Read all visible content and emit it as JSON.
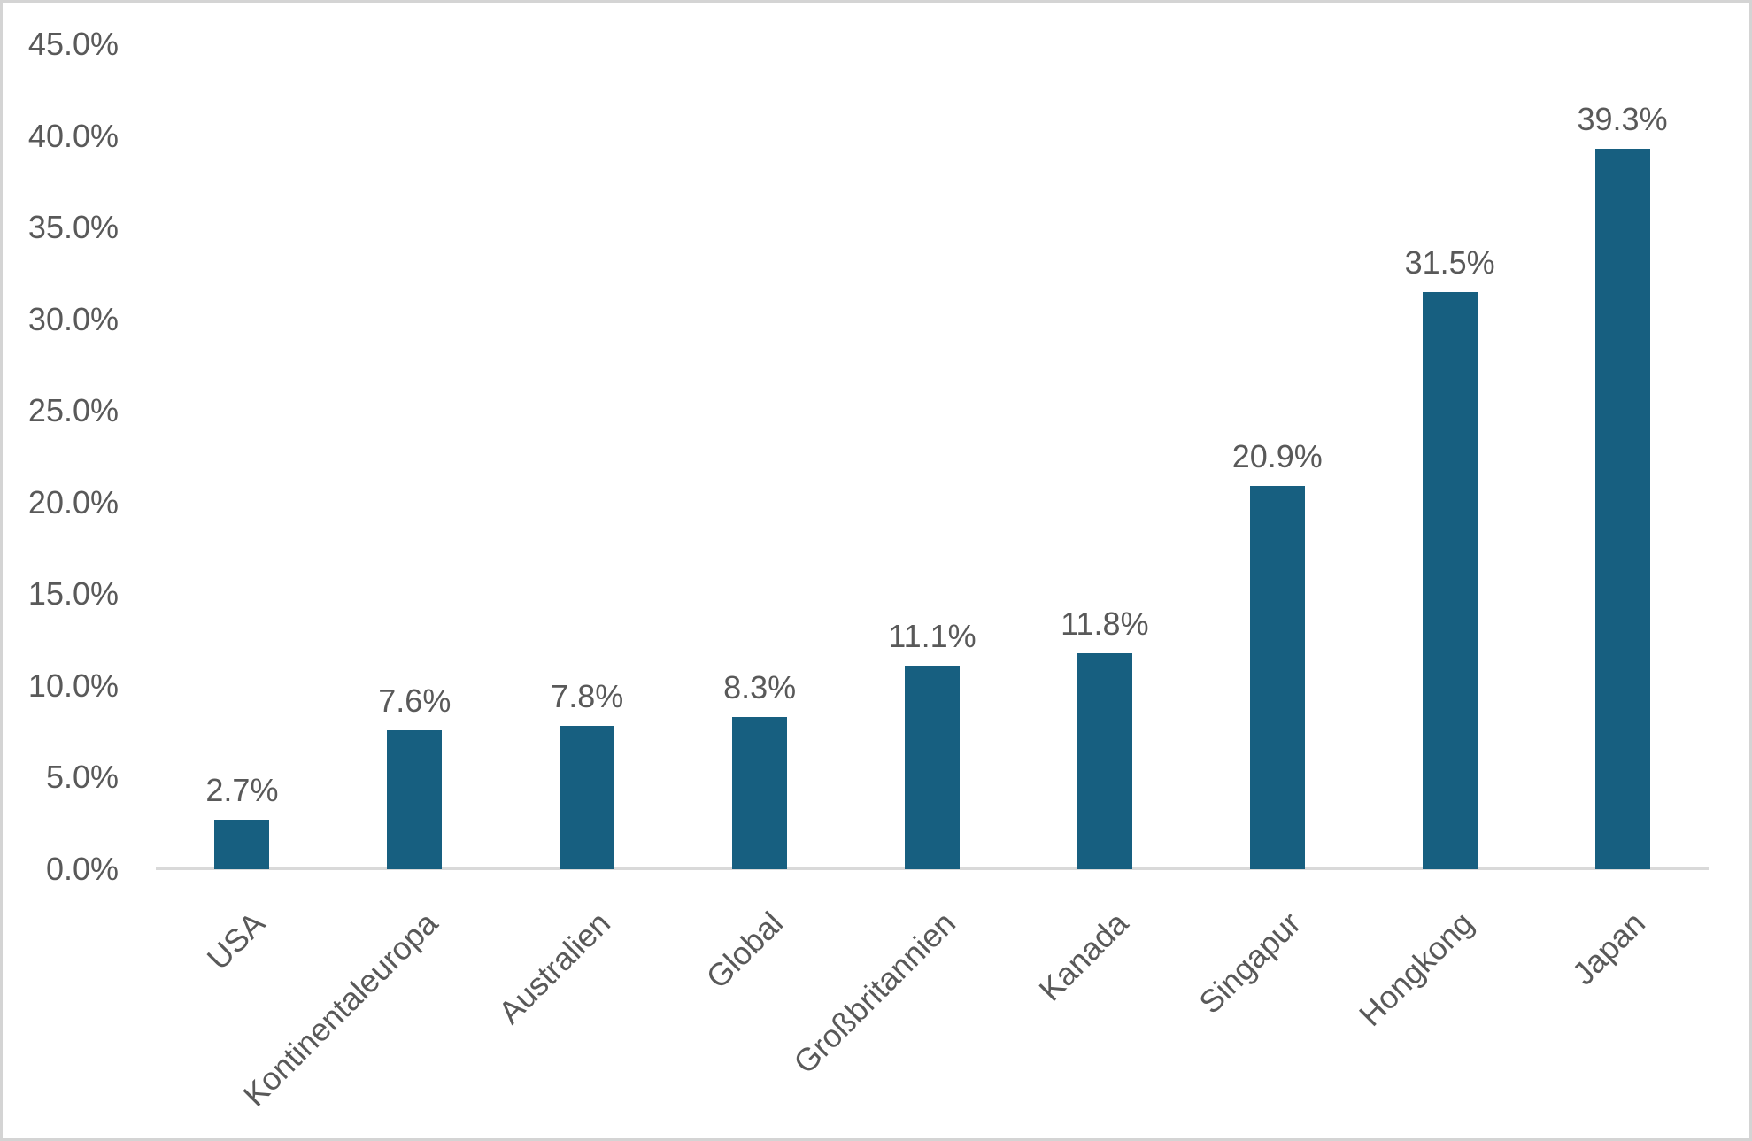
{
  "chart_data": {
    "type": "bar",
    "categories": [
      "USA",
      "Kontinentaleuropa",
      "Australien",
      "Global",
      "Großbritannien",
      "Kanada",
      "Singapur",
      "Hongkong",
      "Japan"
    ],
    "values": [
      2.7,
      7.6,
      7.8,
      8.3,
      11.1,
      11.8,
      20.9,
      31.5,
      39.3
    ],
    "data_labels": [
      "2.7%",
      "7.6%",
      "7.8%",
      "8.3%",
      "11.1%",
      "11.8%",
      "20.9%",
      "31.5%",
      "39.3%"
    ],
    "y_tick_labels": [
      "0.0%",
      "5.0%",
      "10.0%",
      "15.0%",
      "20.0%",
      "25.0%",
      "30.0%",
      "35.0%",
      "40.0%",
      "45.0%"
    ],
    "y_tick_values": [
      0,
      5,
      10,
      15,
      20,
      25,
      30,
      35,
      40,
      45
    ],
    "ylim": [
      0,
      45
    ],
    "title": "",
    "xlabel": "",
    "ylabel": "",
    "grid": false,
    "legend": false,
    "x_label_rotation_deg": -45,
    "colors": {
      "bar_fill": "#175F80",
      "axis_line": "#d9d9d9",
      "tick_text": "#595959",
      "data_label_text": "#595959",
      "background": "#ffffff",
      "frame_border": "#d4d4d4"
    }
  }
}
